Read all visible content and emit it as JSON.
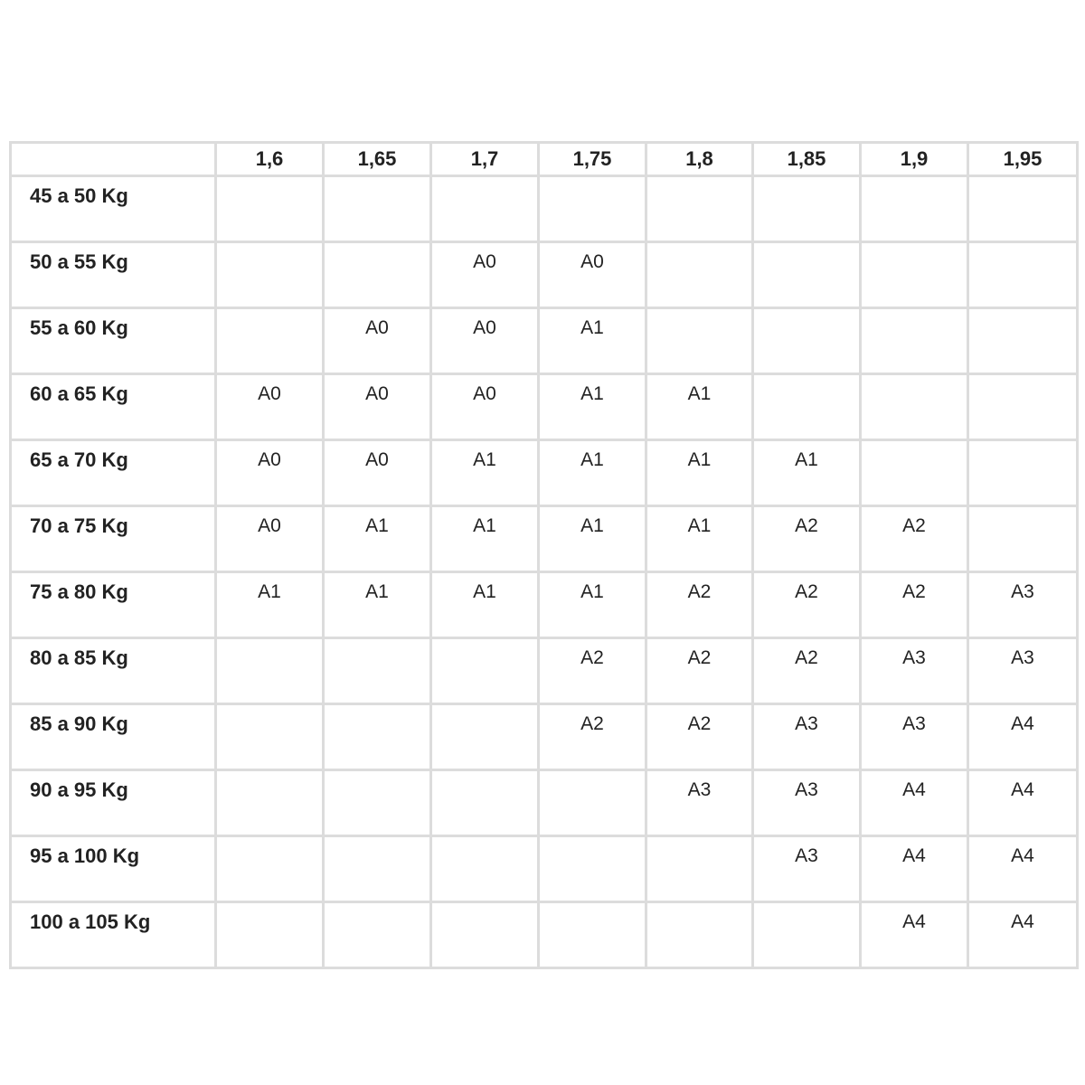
{
  "table": {
    "corner": "",
    "columns": [
      "1,6",
      "1,65",
      "1,7",
      "1,75",
      "1,8",
      "1,85",
      "1,9",
      "1,95"
    ],
    "rows": [
      {
        "label": "45 a 50 Kg",
        "cells": [
          "",
          "",
          "",
          "",
          "",
          "",
          "",
          ""
        ]
      },
      {
        "label": "50 a 55 Kg",
        "cells": [
          "",
          "",
          "A0",
          "A0",
          "",
          "",
          "",
          ""
        ]
      },
      {
        "label": "55 a 60 Kg",
        "cells": [
          "",
          "A0",
          "A0",
          "A1",
          "",
          "",
          "",
          ""
        ]
      },
      {
        "label": "60 a 65 Kg",
        "cells": [
          "A0",
          "A0",
          "A0",
          "A1",
          "A1",
          "",
          "",
          ""
        ]
      },
      {
        "label": "65 a 70 Kg",
        "cells": [
          "A0",
          "A0",
          "A1",
          "A1",
          "A1",
          "A1",
          "",
          ""
        ]
      },
      {
        "label": "70 a 75 Kg",
        "cells": [
          "A0",
          "A1",
          "A1",
          "A1",
          "A1",
          "A2",
          "A2",
          ""
        ]
      },
      {
        "label": "75 a 80 Kg",
        "cells": [
          "A1",
          "A1",
          "A1",
          "A1",
          "A2",
          "A2",
          "A2",
          "A3"
        ]
      },
      {
        "label": "80 a 85 Kg",
        "cells": [
          "",
          "",
          "",
          "A2",
          "A2",
          "A2",
          "A3",
          "A3"
        ]
      },
      {
        "label": "85 a 90 Kg",
        "cells": [
          "",
          "",
          "",
          "A2",
          "A2",
          "A3",
          "A3",
          "A4"
        ]
      },
      {
        "label": "90 a 95 Kg",
        "cells": [
          "",
          "",
          "",
          "",
          "A3",
          "A3",
          "A4",
          "A4"
        ]
      },
      {
        "label": "95 a 100 Kg",
        "cells": [
          "",
          "",
          "",
          "",
          "",
          "A3",
          "A4",
          "A4"
        ]
      },
      {
        "label": "100 a 105 Kg",
        "cells": [
          "",
          "",
          "",
          "",
          "",
          "",
          "A4",
          "A4"
        ]
      }
    ]
  },
  "colors": {
    "grid": "#dcdcdc",
    "text": "#222222"
  }
}
